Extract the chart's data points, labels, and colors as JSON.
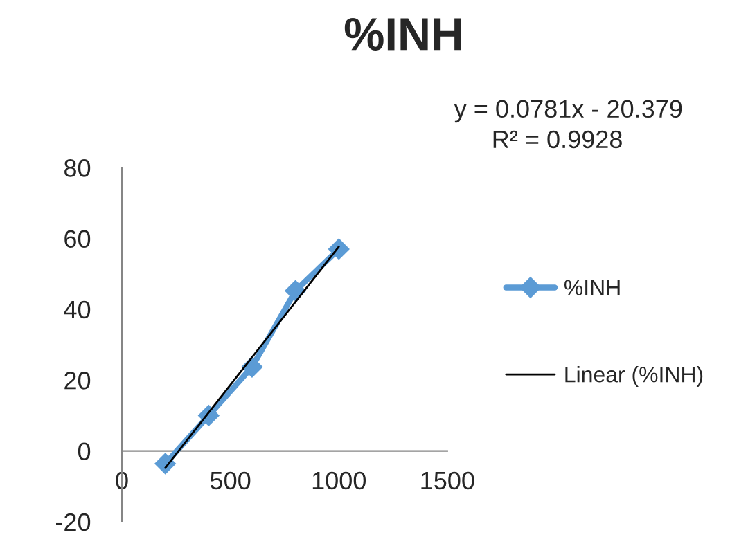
{
  "chart_data": {
    "type": "line",
    "title": "%INH",
    "x": [
      200,
      400,
      600,
      800,
      1000
    ],
    "series": [
      {
        "name": "%INH",
        "color": "#5b9bd5",
        "values": [
          -3.6,
          10,
          23.7,
          45.2,
          57
        ],
        "marker": "diamond"
      },
      {
        "name": "Linear (%INH)",
        "color": "#000000",
        "type": "line",
        "x": [
          200,
          1000
        ],
        "values": [
          -4.8,
          57.7
        ],
        "marker": "none"
      }
    ],
    "xlim": [
      0,
      1500
    ],
    "xticks": [
      0,
      500,
      1000,
      1500
    ],
    "ylim": [
      -20,
      80
    ],
    "yticks": [
      -20,
      0,
      20,
      40,
      60,
      80
    ],
    "annotations": [
      "y = 0.0781x - 20.379",
      "R² = 0.9928"
    ],
    "grid": false,
    "legend": "right"
  }
}
